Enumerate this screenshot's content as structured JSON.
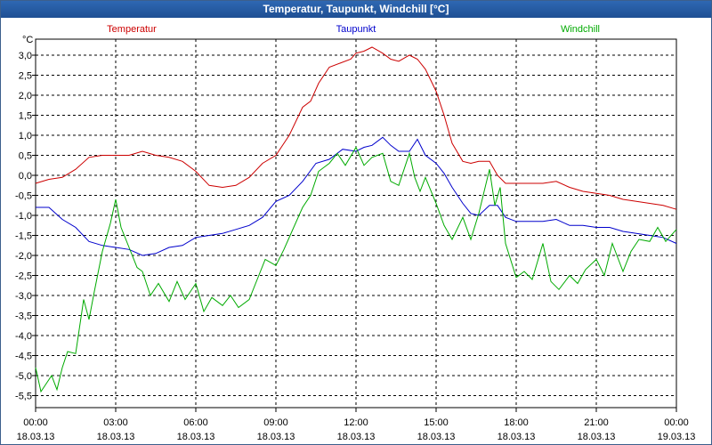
{
  "window": {
    "title": "Temperatur, Taupunkt, Windchill [°C]"
  },
  "chart_data": {
    "type": "line",
    "title": "Temperatur, Taupunkt, Windchill [°C]",
    "ylabel": "°C",
    "xlabel": "",
    "ylim": [
      -5.8,
      3.4
    ],
    "xlim": [
      0,
      24
    ],
    "grid": true,
    "y_ticks": [
      3.0,
      2.5,
      2.0,
      1.5,
      1.0,
      0.5,
      0.0,
      -0.5,
      -1.0,
      -1.5,
      -2.0,
      -2.5,
      -3.0,
      -3.5,
      -4.0,
      -4.5,
      -5.0,
      -5.5
    ],
    "y_tick_labels": [
      "3,0",
      "2,5",
      "2,0",
      "1,5",
      "1,0",
      "0,5",
      "0,0",
      "-0,5",
      "-1,0",
      "-1,5",
      "-2,0",
      "-2,5",
      "-3,0",
      "-3,5",
      "-4,0",
      "-4,5",
      "-5,0",
      "-5,5"
    ],
    "x_ticks": [
      {
        "t": 0,
        "time": "00:00",
        "date": "18.03.13"
      },
      {
        "t": 3,
        "time": "03:00",
        "date": "18.03.13"
      },
      {
        "t": 6,
        "time": "06:00",
        "date": "18.03.13"
      },
      {
        "t": 9,
        "time": "09:00",
        "date": "18.03.13"
      },
      {
        "t": 12,
        "time": "12:00",
        "date": "18.03.13"
      },
      {
        "t": 15,
        "time": "15:00",
        "date": "18.03.13"
      },
      {
        "t": 18,
        "time": "18:00",
        "date": "18.03.13"
      },
      {
        "t": 21,
        "time": "21:00",
        "date": "18.03.13"
      },
      {
        "t": 24,
        "time": "00:00",
        "date": "19.03.13"
      }
    ],
    "series": [
      {
        "name": "Temperatur",
        "color": "#cc0000",
        "legend_pos": "top-left",
        "x": [
          0,
          0.5,
          1,
          1.5,
          2,
          2.5,
          3,
          3.5,
          4,
          4.5,
          5,
          5.5,
          6,
          6.5,
          7,
          7.5,
          8,
          8.5,
          9,
          9.5,
          10,
          10.3,
          10.6,
          11,
          11.4,
          11.8,
          12,
          12.3,
          12.6,
          13,
          13.3,
          13.6,
          14,
          14.3,
          14.6,
          15,
          15.3,
          15.6,
          16,
          16.3,
          16.6,
          17,
          17.3,
          17.6,
          18,
          18.5,
          19,
          19.5,
          20,
          20.5,
          21,
          21.5,
          22,
          22.5,
          23,
          23.5,
          24
        ],
        "values": [
          -0.2,
          -0.1,
          -0.05,
          0.15,
          0.45,
          0.5,
          0.5,
          0.5,
          0.6,
          0.5,
          0.45,
          0.35,
          0.1,
          -0.25,
          -0.3,
          -0.25,
          -0.05,
          0.3,
          0.5,
          1.0,
          1.7,
          1.85,
          2.3,
          2.7,
          2.8,
          2.9,
          3.05,
          3.1,
          3.2,
          3.05,
          2.9,
          2.85,
          3.0,
          2.9,
          2.65,
          2.1,
          1.5,
          0.8,
          0.35,
          0.3,
          0.35,
          0.35,
          0.0,
          -0.2,
          -0.2,
          -0.2,
          -0.2,
          -0.15,
          -0.3,
          -0.4,
          -0.45,
          -0.5,
          -0.6,
          -0.65,
          -0.7,
          -0.75,
          -0.85
        ]
      },
      {
        "name": "Taupunkt",
        "color": "#0000cc",
        "legend_pos": "top-center",
        "x": [
          0,
          0.5,
          1,
          1.5,
          2,
          2.5,
          3,
          3.5,
          4,
          4.5,
          5,
          5.5,
          6,
          6.5,
          7,
          7.5,
          8,
          8.5,
          9,
          9.5,
          10,
          10.5,
          11,
          11.5,
          12,
          12.3,
          12.6,
          13,
          13.3,
          13.6,
          14,
          14.3,
          14.6,
          15,
          15.3,
          15.6,
          16,
          16.3,
          16.6,
          17,
          17.3,
          17.6,
          18,
          18.5,
          19,
          19.5,
          20,
          20.5,
          21,
          21.5,
          22,
          22.5,
          23,
          23.5,
          24
        ],
        "values": [
          -0.8,
          -0.8,
          -1.1,
          -1.3,
          -1.65,
          -1.75,
          -1.8,
          -1.85,
          -2.0,
          -1.95,
          -1.8,
          -1.75,
          -1.55,
          -1.5,
          -1.45,
          -1.35,
          -1.25,
          -1.05,
          -0.65,
          -0.5,
          -0.15,
          0.3,
          0.4,
          0.65,
          0.6,
          0.7,
          0.75,
          0.95,
          0.75,
          0.6,
          0.6,
          0.9,
          0.5,
          0.3,
          0.05,
          -0.3,
          -0.7,
          -0.95,
          -1.0,
          -0.75,
          -0.75,
          -1.05,
          -1.15,
          -1.15,
          -1.15,
          -1.1,
          -1.25,
          -1.25,
          -1.3,
          -1.3,
          -1.4,
          -1.45,
          -1.5,
          -1.55,
          -1.7
        ]
      },
      {
        "name": "Windchill",
        "color": "#00aa00",
        "legend_pos": "top-right",
        "x": [
          0,
          0.2,
          0.4,
          0.6,
          0.8,
          1,
          1.2,
          1.5,
          1.8,
          2,
          2.2,
          2.5,
          2.8,
          3,
          3.2,
          3.5,
          3.8,
          4,
          4.3,
          4.6,
          5,
          5.3,
          5.6,
          6,
          6.3,
          6.6,
          7,
          7.3,
          7.6,
          8,
          8.3,
          8.6,
          9,
          9.3,
          9.6,
          10,
          10.3,
          10.6,
          11,
          11.3,
          11.6,
          12,
          12.3,
          12.6,
          13,
          13.3,
          13.6,
          14,
          14.2,
          14.4,
          14.6,
          15,
          15.3,
          15.6,
          16,
          16.3,
          16.6,
          17,
          17.2,
          17.4,
          17.6,
          18,
          18.3,
          18.6,
          19,
          19.3,
          19.6,
          20,
          20.3,
          20.6,
          21,
          21.3,
          21.6,
          22,
          22.3,
          22.6,
          23,
          23.3,
          23.6,
          24
        ],
        "values": [
          -4.8,
          -5.4,
          -5.2,
          -5.0,
          -5.35,
          -4.8,
          -4.4,
          -4.45,
          -3.1,
          -3.6,
          -2.9,
          -1.9,
          -1.2,
          -0.6,
          -1.3,
          -1.8,
          -2.3,
          -2.4,
          -3.0,
          -2.7,
          -3.15,
          -2.65,
          -3.1,
          -2.7,
          -3.4,
          -3.05,
          -3.25,
          -3.0,
          -3.3,
          -3.1,
          -2.6,
          -2.1,
          -2.25,
          -1.85,
          -1.4,
          -0.8,
          -0.5,
          0.1,
          0.3,
          0.55,
          0.25,
          0.7,
          0.25,
          0.45,
          0.55,
          -0.15,
          -0.25,
          0.55,
          -0.05,
          -0.4,
          -0.05,
          -0.7,
          -1.25,
          -1.6,
          -1.05,
          -1.6,
          -0.95,
          0.15,
          -0.75,
          -0.3,
          -1.7,
          -2.55,
          -2.4,
          -2.6,
          -1.7,
          -2.65,
          -2.85,
          -2.5,
          -2.7,
          -2.35,
          -2.1,
          -2.5,
          -1.7,
          -2.4,
          -1.9,
          -1.6,
          -1.65,
          -1.3,
          -1.65,
          -1.35
        ]
      }
    ]
  }
}
